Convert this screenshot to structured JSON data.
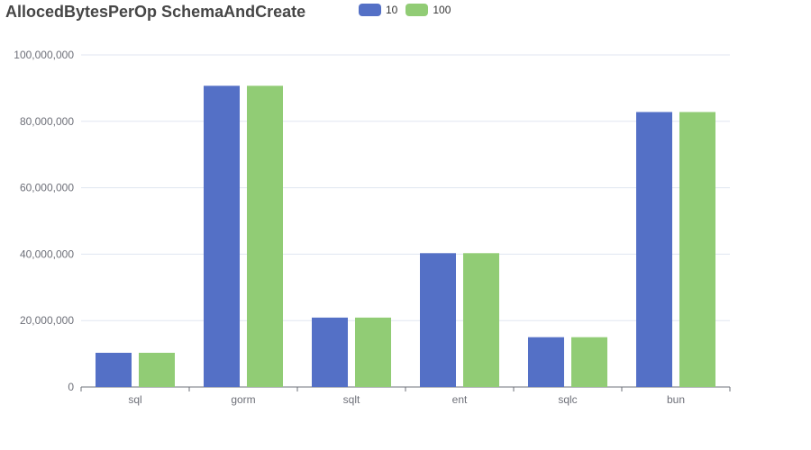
{
  "chart_data": {
    "type": "bar",
    "title": "AllocedBytesPerOp SchemaAndCreate",
    "xlabel": "",
    "ylabel": "",
    "categories": [
      "sql",
      "gorm",
      "sqlt",
      "ent",
      "sqlc",
      "bun"
    ],
    "series": [
      {
        "name": "10",
        "color": "#5470c6",
        "values": [
          10300000,
          90700000,
          20900000,
          40300000,
          15000000,
          82800000
        ]
      },
      {
        "name": "100",
        "color": "#91cc75",
        "values": [
          10300000,
          90700000,
          20900000,
          40300000,
          15000000,
          82800000
        ]
      }
    ],
    "ylim": [
      0,
      100000000
    ],
    "yticks": [
      0,
      20000000,
      40000000,
      60000000,
      80000000,
      100000000
    ],
    "ytick_labels": [
      "0",
      "20,000,000",
      "40,000,000",
      "60,000,000",
      "80,000,000",
      "100,000,000"
    ],
    "grid": true,
    "legend_position": "top-center"
  }
}
